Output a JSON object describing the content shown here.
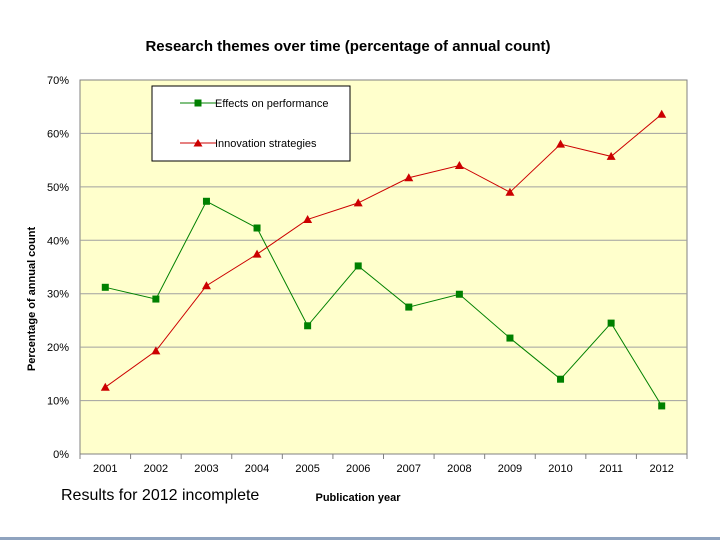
{
  "chart_data": {
    "type": "line",
    "title": "Research themes over time (percentage of annual count)",
    "xlabel": "Publication year",
    "ylabel": "Percentage of annual count",
    "categories": [
      "2001",
      "2002",
      "2003",
      "2004",
      "2005",
      "2006",
      "2007",
      "2008",
      "2009",
      "2010",
      "2011",
      "2012"
    ],
    "ylim": [
      0,
      70
    ],
    "yticks": [
      "0%",
      "10%",
      "20%",
      "30%",
      "40%",
      "50%",
      "60%",
      "70%"
    ],
    "grid": true,
    "legend_position": "top-left",
    "plot_background": "#ffffcc",
    "series": [
      {
        "name": "Effects on performance",
        "marker": "square",
        "color": "#008000",
        "values": [
          31.2,
          29,
          47.3,
          42.3,
          24,
          35.2,
          27.5,
          29.9,
          21.7,
          14,
          24.5,
          9
        ]
      },
      {
        "name": "Innovation strategies",
        "marker": "triangle",
        "color": "#cc0000",
        "values": [
          12.5,
          19.3,
          31.5,
          37.4,
          43.9,
          47,
          51.7,
          54,
          49,
          58,
          55.7,
          63.6
        ]
      }
    ],
    "annotation": "Results for 2012 incomplete"
  }
}
